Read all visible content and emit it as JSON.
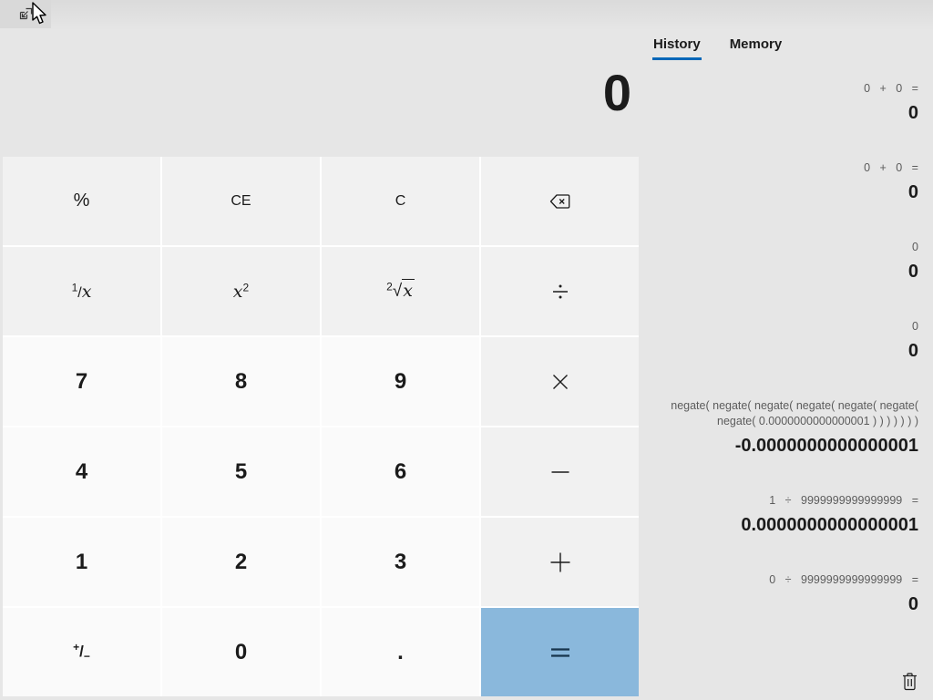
{
  "colors": {
    "accent": "#0067b8",
    "equals_bg": "#8ab8dc",
    "equals_fg": "#17344d",
    "window_bg": "#e6e6e6",
    "function_key_bg": "#f1f1f1",
    "number_key_bg": "#fafafa"
  },
  "topbar": {
    "keep_on_top_icon": "keep-on-top-icon",
    "cursor_icon": "mouse-cursor"
  },
  "display": {
    "value": "0"
  },
  "tabs": [
    {
      "id": "history",
      "label": "History",
      "active": true
    },
    {
      "id": "memory",
      "label": "Memory",
      "active": false
    }
  ],
  "history": {
    "clear_icon": "trash-icon",
    "items": [
      {
        "expression": "0 + 0 =",
        "result": "0"
      },
      {
        "expression": "0 + 0 =",
        "result": "0"
      },
      {
        "expression": "0",
        "result": "0"
      },
      {
        "expression": "0",
        "result": "0"
      },
      {
        "expression": "negate( negate( negate( negate( negate( negate( negate( 0.0000000000000001 ) ) ) ) ) ) )",
        "result": "-0.0000000000000001"
      },
      {
        "expression": "1 ÷ 9999999999999999 =",
        "result": "0.0000000000000001"
      },
      {
        "expression": "0 ÷ 9999999999999999 =",
        "result": "0"
      }
    ]
  },
  "keypad": {
    "buttons": [
      {
        "id": "percent",
        "label": "%",
        "type": "function"
      },
      {
        "id": "clear-entry",
        "label": "CE",
        "type": "function"
      },
      {
        "id": "clear",
        "label": "C",
        "type": "function"
      },
      {
        "id": "backspace",
        "label": "⌫",
        "type": "function",
        "icon": "backspace-icon"
      },
      {
        "id": "reciprocal",
        "label": "1/x",
        "type": "function"
      },
      {
        "id": "square",
        "label": "x²",
        "type": "function"
      },
      {
        "id": "square-root",
        "label": "²√x",
        "type": "function"
      },
      {
        "id": "divide",
        "label": "÷",
        "type": "function",
        "icon": "divide-icon"
      },
      {
        "id": "seven",
        "label": "7",
        "type": "number"
      },
      {
        "id": "eight",
        "label": "8",
        "type": "number"
      },
      {
        "id": "nine",
        "label": "9",
        "type": "number"
      },
      {
        "id": "multiply",
        "label": "×",
        "type": "function",
        "icon": "multiply-icon"
      },
      {
        "id": "four",
        "label": "4",
        "type": "number"
      },
      {
        "id": "five",
        "label": "5",
        "type": "number"
      },
      {
        "id": "six",
        "label": "6",
        "type": "number"
      },
      {
        "id": "minus",
        "label": "−",
        "type": "function",
        "icon": "minus-icon"
      },
      {
        "id": "one",
        "label": "1",
        "type": "number"
      },
      {
        "id": "two",
        "label": "2",
        "type": "number"
      },
      {
        "id": "three",
        "label": "3",
        "type": "number"
      },
      {
        "id": "plus",
        "label": "+",
        "type": "function",
        "icon": "plus-icon"
      },
      {
        "id": "negate",
        "label": "+/−",
        "type": "number"
      },
      {
        "id": "zero",
        "label": "0",
        "type": "number"
      },
      {
        "id": "decimal",
        "label": ".",
        "type": "number"
      },
      {
        "id": "equals",
        "label": "=",
        "type": "equals",
        "icon": "equals-icon"
      }
    ]
  }
}
